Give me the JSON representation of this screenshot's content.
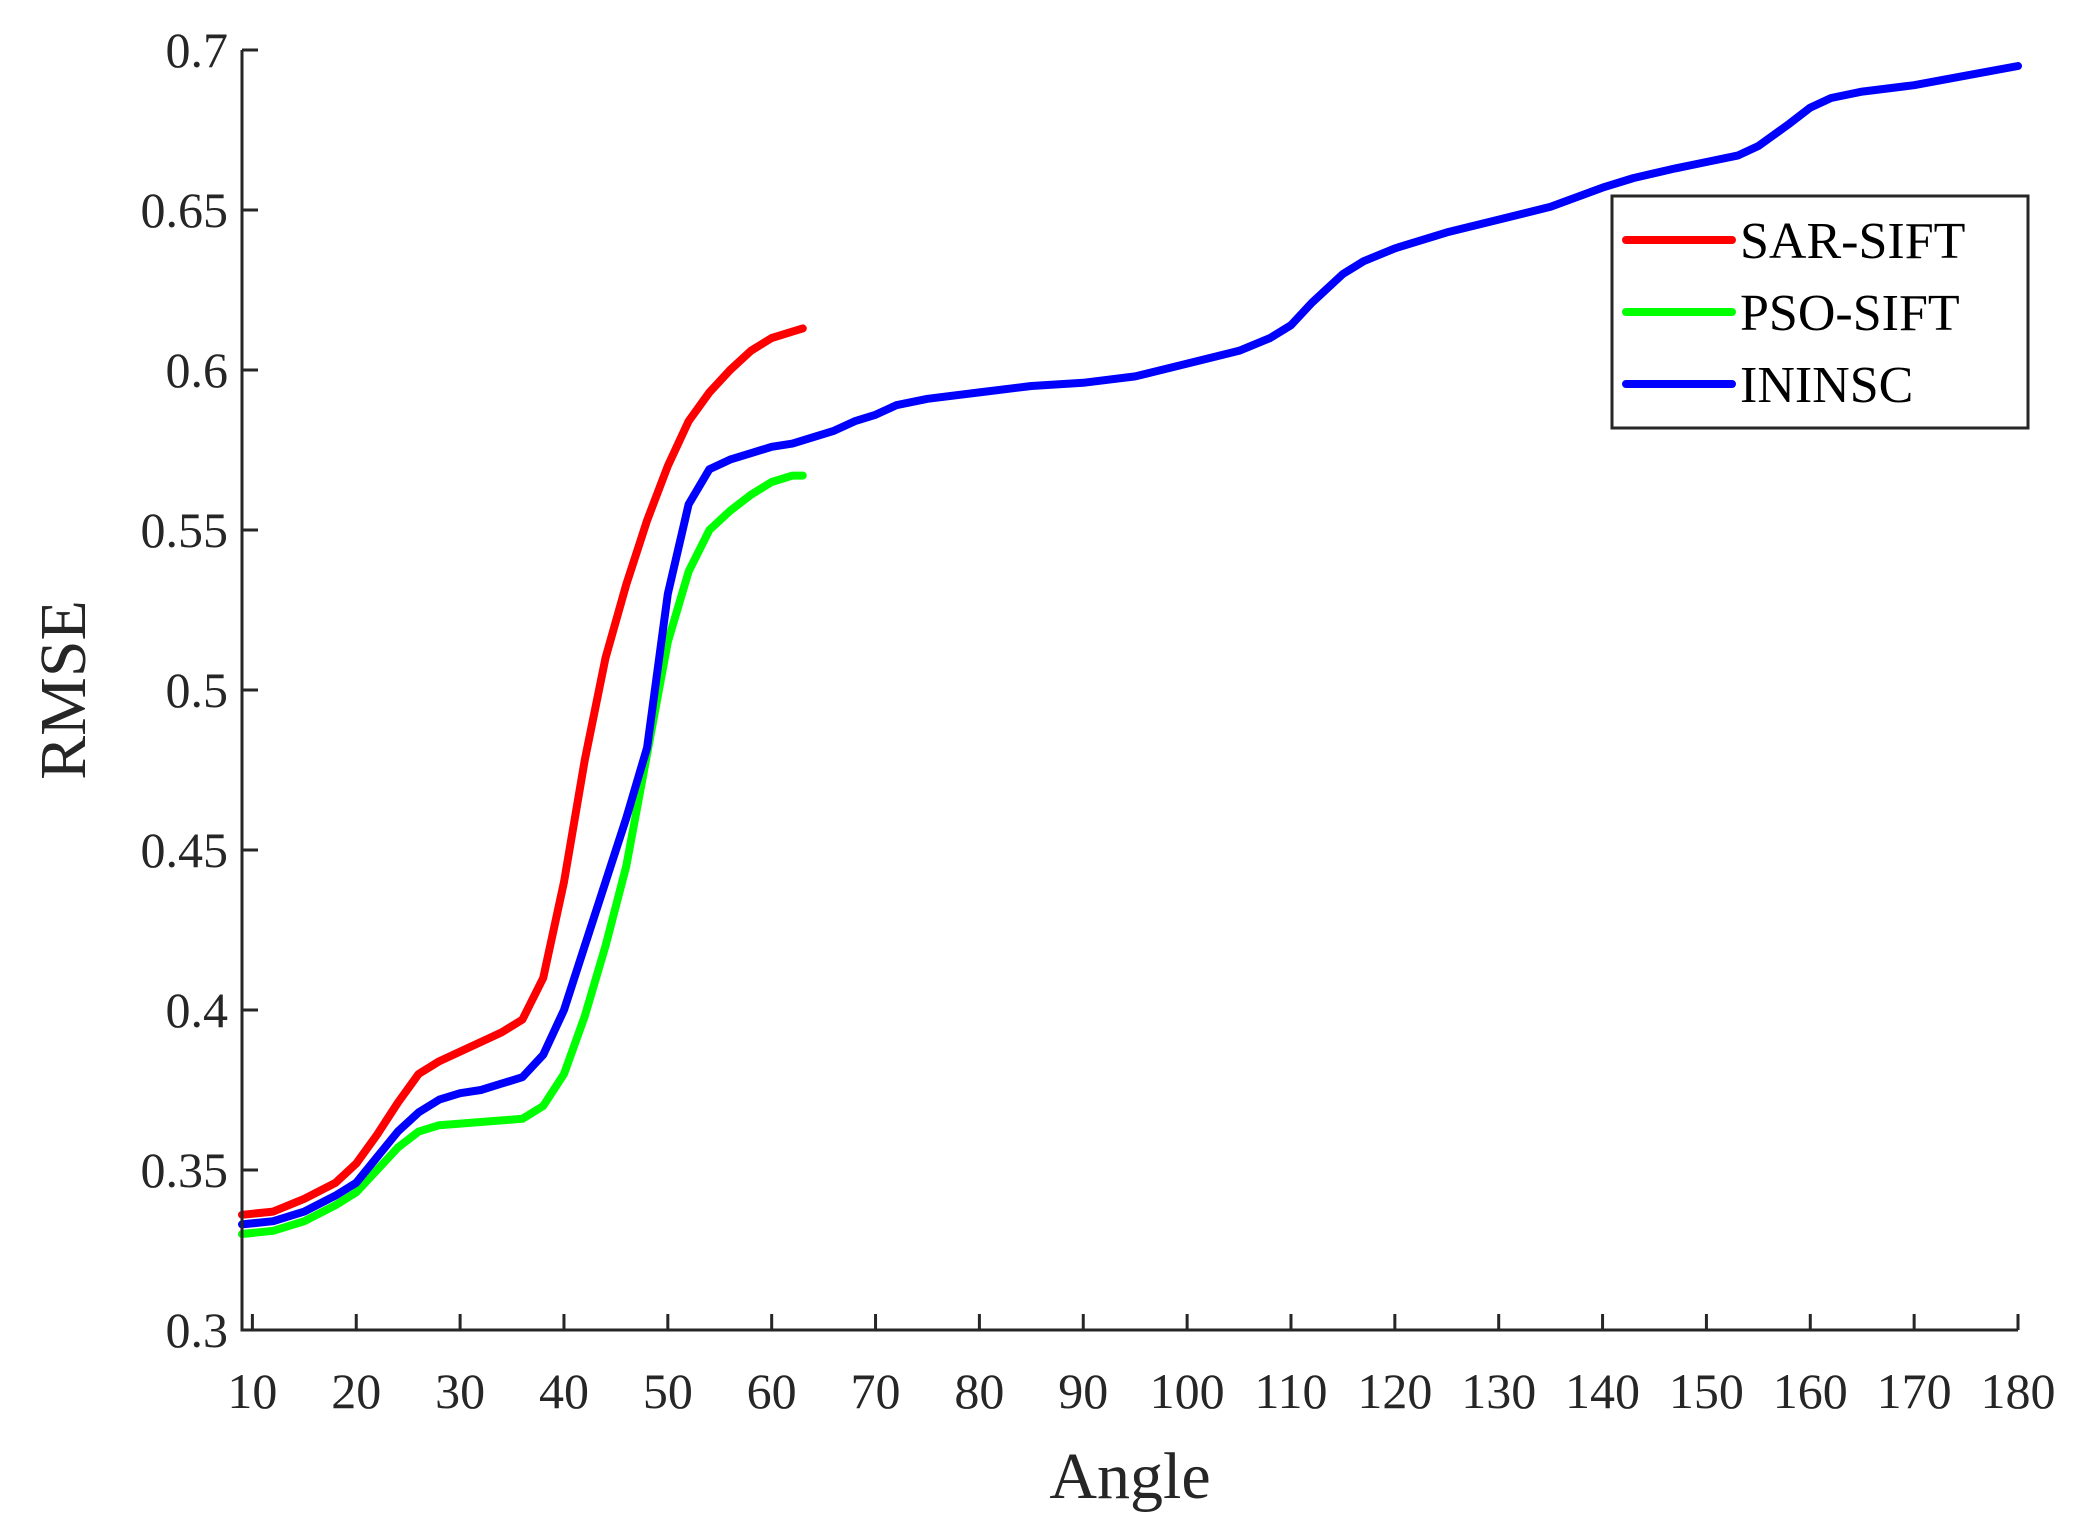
{
  "chart_data": {
    "type": "line",
    "title": "",
    "xlabel": "Angle",
    "ylabel": "RMSE",
    "xlim": [
      9,
      180
    ],
    "ylim": [
      0.3,
      0.7
    ],
    "xticks": [
      10,
      20,
      30,
      40,
      50,
      60,
      70,
      80,
      90,
      100,
      110,
      120,
      130,
      140,
      150,
      160,
      170,
      180
    ],
    "yticks": [
      0.3,
      0.35,
      0.4,
      0.45,
      0.5,
      0.55,
      0.6,
      0.65,
      0.7
    ],
    "ytick_labels": [
      "0.3",
      "0.35",
      "0.4",
      "0.45",
      "0.5",
      "0.55",
      "0.6",
      "0.65",
      "0.7"
    ],
    "grid": false,
    "legend_position": "top-right",
    "series": [
      {
        "name": "SAR-SIFT",
        "color": "#ff0000",
        "x": [
          9,
          12,
          15,
          18,
          20,
          22,
          24,
          26,
          28,
          30,
          32,
          34,
          36,
          38,
          40,
          42,
          44,
          46,
          48,
          50,
          52,
          54,
          56,
          58,
          60,
          62,
          63
        ],
        "y": [
          0.336,
          0.337,
          0.341,
          0.346,
          0.352,
          0.361,
          0.371,
          0.38,
          0.384,
          0.387,
          0.39,
          0.393,
          0.397,
          0.41,
          0.44,
          0.478,
          0.51,
          0.533,
          0.553,
          0.57,
          0.584,
          0.593,
          0.6,
          0.606,
          0.61,
          0.612,
          0.613
        ]
      },
      {
        "name": "PSO-SIFT",
        "color": "#00ff00",
        "x": [
          9,
          12,
          15,
          18,
          20,
          22,
          24,
          26,
          28,
          30,
          32,
          34,
          36,
          38,
          40,
          42,
          44,
          46,
          48,
          50,
          52,
          54,
          56,
          58,
          60,
          62,
          63
        ],
        "y": [
          0.33,
          0.331,
          0.334,
          0.339,
          0.343,
          0.35,
          0.357,
          0.362,
          0.364,
          0.3645,
          0.365,
          0.3655,
          0.366,
          0.37,
          0.38,
          0.398,
          0.42,
          0.445,
          0.48,
          0.515,
          0.537,
          0.55,
          0.556,
          0.561,
          0.565,
          0.567,
          0.567
        ]
      },
      {
        "name": "ININSC",
        "color": "#0000ff",
        "x": [
          9,
          12,
          15,
          18,
          20,
          22,
          24,
          26,
          28,
          30,
          32,
          34,
          36,
          38,
          40,
          42,
          44,
          46,
          48,
          50,
          52,
          54,
          56,
          58,
          60,
          62,
          64,
          66,
          68,
          70,
          72,
          75,
          80,
          85,
          90,
          95,
          100,
          105,
          108,
          110,
          112,
          115,
          117,
          120,
          125,
          130,
          135,
          140,
          143,
          147,
          150,
          153,
          155,
          158,
          160,
          162,
          165,
          170,
          175,
          180
        ],
        "y": [
          0.333,
          0.334,
          0.337,
          0.342,
          0.346,
          0.354,
          0.362,
          0.368,
          0.372,
          0.374,
          0.375,
          0.377,
          0.379,
          0.386,
          0.4,
          0.42,
          0.44,
          0.46,
          0.482,
          0.53,
          0.558,
          0.569,
          0.572,
          0.574,
          0.576,
          0.577,
          0.579,
          0.581,
          0.584,
          0.586,
          0.589,
          0.591,
          0.593,
          0.595,
          0.596,
          0.598,
          0.602,
          0.606,
          0.61,
          0.614,
          0.621,
          0.63,
          0.634,
          0.638,
          0.643,
          0.647,
          0.651,
          0.657,
          0.66,
          0.663,
          0.665,
          0.667,
          0.67,
          0.677,
          0.682,
          0.685,
          0.687,
          0.689,
          0.692,
          0.695
        ]
      }
    ]
  }
}
